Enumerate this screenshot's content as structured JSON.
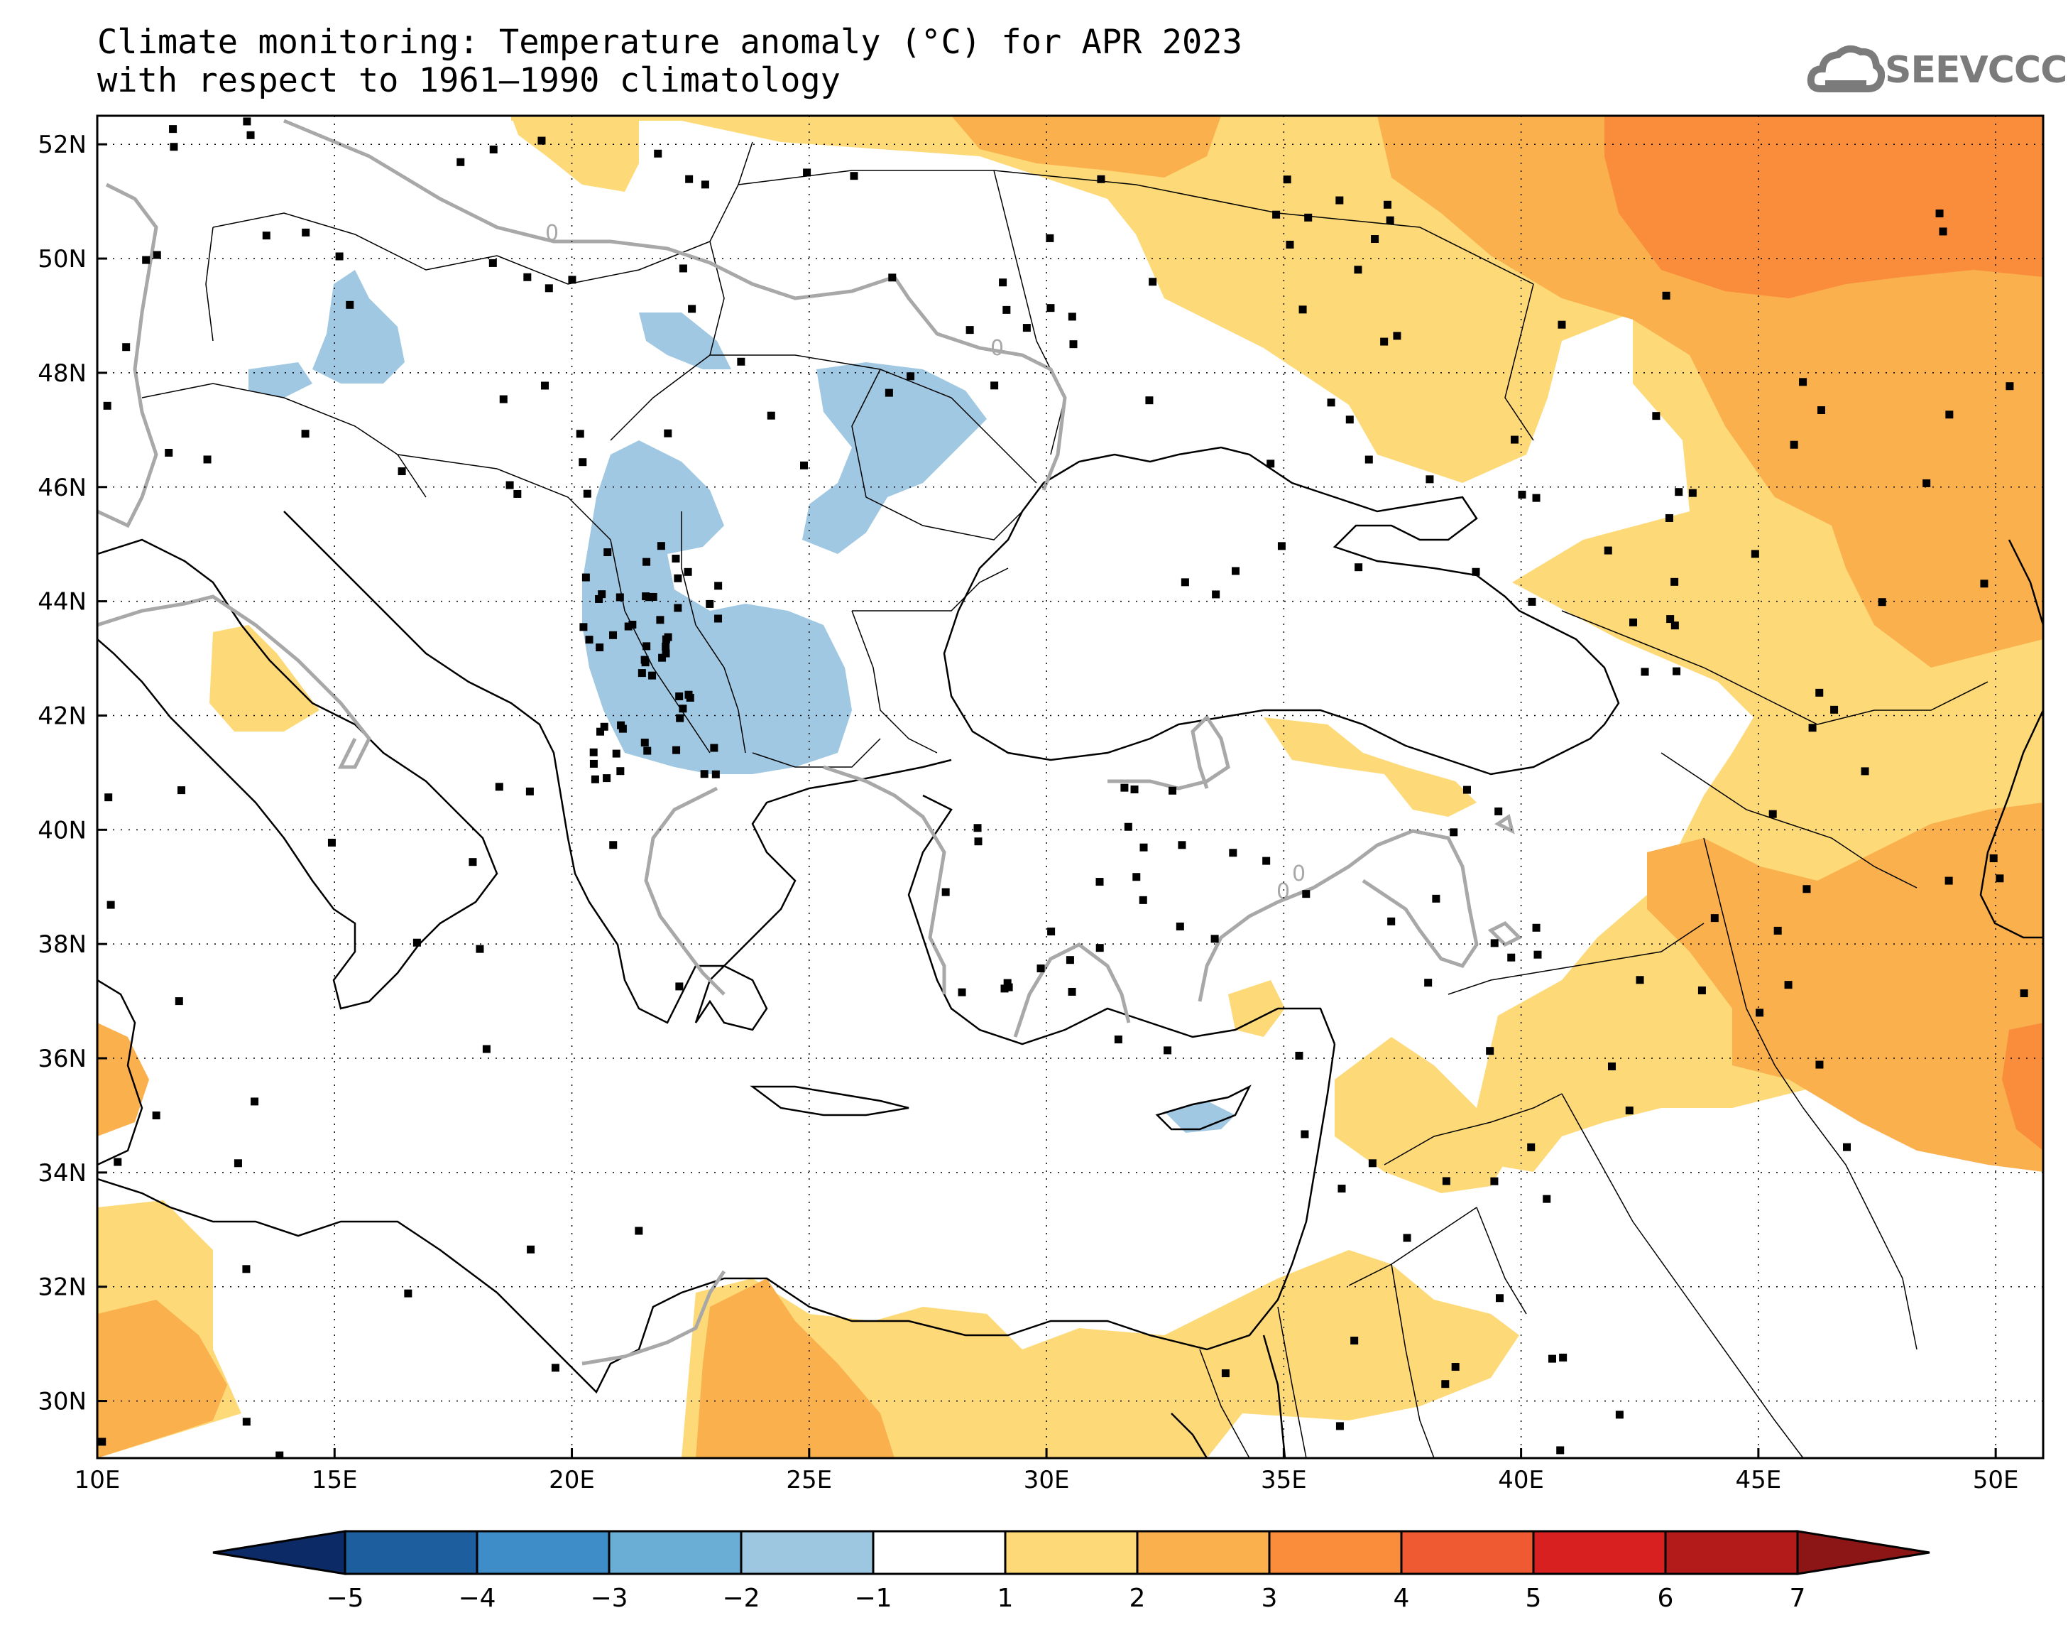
{
  "title": {
    "line1": "Climate monitoring: Temperature anomaly (°C) for APR 2023",
    "line2": "with respect to 1961–1990 climatology"
  },
  "logo": {
    "text": "SEEVCCC",
    "icon": "cloud-icon"
  },
  "map": {
    "lon_range": [
      10,
      51
    ],
    "lat_range": [
      29,
      52.5
    ],
    "lon_ticks": [
      "10E",
      "15E",
      "20E",
      "25E",
      "30E",
      "35E",
      "40E",
      "45E",
      "50E"
    ],
    "lat_ticks": [
      "30N",
      "32N",
      "34N",
      "36N",
      "38N",
      "40N",
      "42N",
      "44N",
      "46N",
      "48N",
      "50N",
      "52N"
    ],
    "contour_label": "0",
    "grid": "dotted"
  },
  "colorbar": {
    "labels": [
      "−5",
      "−4",
      "−3",
      "−2",
      "−1",
      "1",
      "2",
      "3",
      "4",
      "5",
      "6",
      "7"
    ],
    "colors": [
      "#0b2a66",
      "#1d5f9e",
      "#3e8cc8",
      "#6aaed6",
      "#9dc7e1",
      "#ffffff",
      "#fdd978",
      "#fbb04e",
      "#f98d3c",
      "#f05a32",
      "#d7201f",
      "#b31b1b",
      "#8c1515"
    ]
  },
  "colors": {
    "cold_fill": "#a0c8e2",
    "warm1": "#fdd978",
    "warm2": "#fbb04e",
    "warm3": "#f98d3c",
    "zero_contour": "#a8a8a8",
    "station": "#000000"
  }
}
